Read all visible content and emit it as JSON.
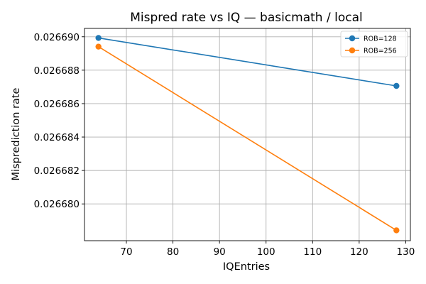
{
  "chart_data": {
    "type": "line",
    "title": "Mispred rate vs IQ — basicmath / local",
    "xlabel": "IQEntries",
    "ylabel": "Misprediction rate",
    "xlim": [
      61,
      131
    ],
    "ylim": [
      0.0266778,
      0.0266905
    ],
    "xticks": [
      70,
      80,
      90,
      100,
      110,
      120,
      130
    ],
    "yticks": [
      0.02668,
      0.026682,
      0.026684,
      0.026686,
      0.026688,
      0.02669
    ],
    "x_tick_labels": [
      "70",
      "80",
      "90",
      "100",
      "110",
      "120",
      "130"
    ],
    "y_tick_labels": [
      "0.026680",
      "0.026682",
      "0.026684",
      "0.026686",
      "0.026688",
      "0.026690"
    ],
    "grid": true,
    "legend_position": "top-right",
    "series": [
      {
        "name": "ROB=128",
        "color": "#1f77b4",
        "x": [
          64,
          128
        ],
        "y": [
          0.02668993,
          0.02668706
        ]
      },
      {
        "name": "ROB=256",
        "color": "#ff7f0e",
        "x": [
          64,
          128
        ],
        "y": [
          0.02668941,
          0.02667842
        ]
      }
    ]
  }
}
